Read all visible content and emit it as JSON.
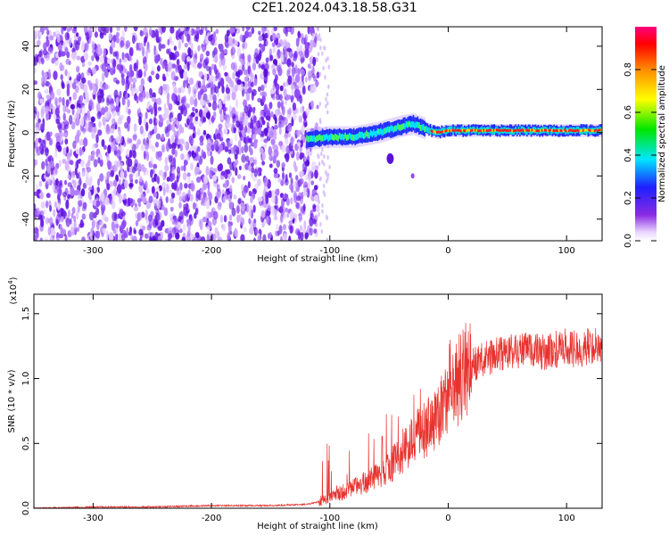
{
  "figure_title": "C2E1.2024.043.18.58.G31",
  "chart_data": [
    {
      "type": "heatmap",
      "xlabel": "Height of straight line (km)",
      "ylabel": "Frequency (Hz)",
      "xlim": [
        -350,
        130
      ],
      "ylim": [
        -50,
        49
      ],
      "xticks": [
        -300,
        -200,
        -100,
        0,
        100
      ],
      "yticks": [
        -40,
        -20,
        0,
        20,
        40
      ],
      "noise_region_x": [
        -350,
        -110
      ],
      "signal_track": {
        "x": [
          -120,
          -100,
          -80,
          -60,
          -40,
          -30,
          -20,
          -10,
          0,
          20,
          40,
          60,
          80,
          100,
          130
        ],
        "freq": [
          -3,
          -2,
          -2,
          0,
          3,
          4,
          2,
          0,
          1,
          1,
          1,
          1,
          1,
          1,
          1
        ]
      },
      "colorbar": {
        "label": "Normalized spectral amplitude",
        "range": [
          0.0,
          1.0
        ],
        "ticks": [
          "0.0",
          "0.2",
          "0.4",
          "0.6",
          "0.8"
        ],
        "tick_values": [
          0.0,
          0.2,
          0.4,
          0.6,
          0.8
        ]
      }
    },
    {
      "type": "line",
      "xlabel": "Height of straight line (km)",
      "ylabel": "SNR (10 * v/v)",
      "y_scale_label": "(x10",
      "y_scale_exponent": "4",
      "y_scale_close": ")",
      "xlim": [
        -350,
        130
      ],
      "ylim": [
        0,
        1.65
      ],
      "xticks": [
        -300,
        -200,
        -100,
        0,
        100
      ],
      "yticks": [
        "0.0",
        "0.5",
        "1.0",
        "1.5"
      ],
      "ytick_values": [
        0.0,
        0.5,
        1.0,
        1.5
      ],
      "color": "#e8322e",
      "series": [
        {
          "x": [
            -350,
            -300,
            -250,
            -200,
            -150,
            -120,
            -110,
            -100,
            -90,
            -80,
            -70,
            -60,
            -50,
            -40,
            -30,
            -20,
            -10,
            0,
            10,
            20,
            30,
            40,
            50,
            60,
            70,
            80,
            90,
            100,
            110,
            120,
            130
          ],
          "y": [
            0.0,
            0.01,
            0.01,
            0.02,
            0.02,
            0.03,
            0.05,
            0.08,
            0.12,
            0.16,
            0.2,
            0.25,
            0.32,
            0.4,
            0.52,
            0.6,
            0.7,
            0.85,
            1.0,
            1.1,
            1.15,
            1.18,
            1.2,
            1.22,
            1.22,
            1.2,
            1.22,
            1.24,
            1.22,
            1.25,
            1.26
          ]
        }
      ]
    }
  ]
}
